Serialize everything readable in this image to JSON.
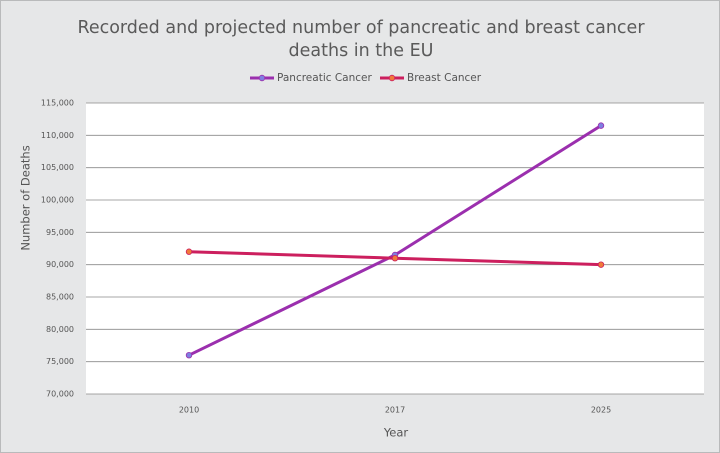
{
  "chart_data": {
    "type": "line",
    "title": "Recorded and projected number of pancreatic and breast cancer deaths in the EU",
    "x_label": "Year",
    "y_label": "Number of Deaths",
    "categories": [
      "2010",
      "2017",
      "2025"
    ],
    "series": [
      {
        "name": "Pancreatic Cancer",
        "color": "#9b2fae",
        "marker_color": "#7f7fe0",
        "values": [
          76000,
          91500,
          111500
        ]
      },
      {
        "name": "Breast Cancer",
        "color": "#cc1f5e",
        "marker_color": "#f07a3a",
        "values": [
          92000,
          91000,
          90000
        ]
      }
    ],
    "ylim": [
      70000,
      115000
    ],
    "yticks": [
      {
        "value": 70000,
        "label": "70,000"
      },
      {
        "value": 75000,
        "label": "75,000"
      },
      {
        "value": 80000,
        "label": "80,000"
      },
      {
        "value": 85000,
        "label": "85,000"
      },
      {
        "value": 90000,
        "label": "90,000"
      },
      {
        "value": 95000,
        "label": "95,000"
      },
      {
        "value": 100000,
        "label": "100,000"
      },
      {
        "value": 105000,
        "label": "105,000"
      },
      {
        "value": 110000,
        "label": "110,000"
      },
      {
        "value": 115000,
        "label": "115,000"
      }
    ],
    "grid": true,
    "legend": "top"
  }
}
